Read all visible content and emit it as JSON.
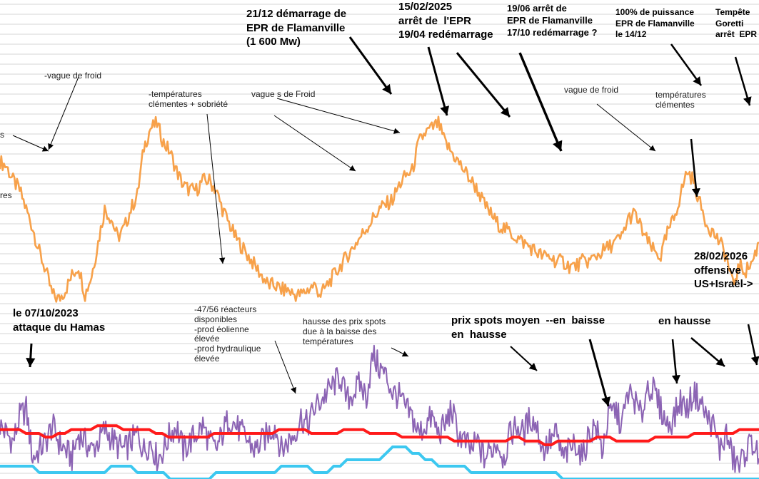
{
  "chart_data": {
    "type": "line",
    "title": "",
    "xlabel": "",
    "ylabel": "",
    "grid": true,
    "legend": "none",
    "colors": {
      "consumption": "#f7a14a",
      "spot": "#8c64b4",
      "red": "#ff1a1a",
      "cyan": "#3cc8f0",
      "arrow": "#000000",
      "grid": "#c8c8c8"
    },
    "series": [
      {
        "key": "consumption",
        "values": [
          72,
          71,
          68,
          66,
          62,
          58,
          53,
          49,
          44,
          43,
          45,
          48,
          50,
          44,
          48,
          55,
          62,
          60,
          56,
          58,
          62,
          65,
          75,
          79,
          80,
          76,
          74,
          70,
          67,
          66,
          66,
          68,
          68,
          66,
          62,
          59,
          56,
          54,
          52,
          50,
          48,
          46,
          46,
          45,
          45,
          44,
          44,
          45,
          46,
          44,
          46,
          48,
          50,
          52,
          54,
          56,
          58,
          60,
          62,
          63,
          64,
          67,
          69,
          70,
          76,
          78,
          79,
          80,
          76,
          74,
          72,
          70,
          68,
          66,
          63,
          61,
          59,
          58,
          57,
          56,
          55,
          54,
          53,
          52,
          52,
          51,
          51,
          50,
          50,
          51,
          51,
          52,
          53,
          54,
          55,
          56,
          60,
          61,
          58,
          55,
          53,
          52,
          57,
          60,
          65,
          70,
          68,
          63,
          59,
          57,
          55,
          52,
          46,
          50,
          49,
          51,
          55
        ]
      },
      {
        "key": "spot",
        "values": [
          28,
          26,
          24,
          30,
          32,
          20,
          22,
          24,
          28,
          24,
          22,
          20,
          26,
          24,
          22,
          24,
          27,
          25,
          23,
          22,
          24,
          26,
          22,
          24,
          20,
          22,
          26,
          28,
          22,
          24,
          26,
          28,
          24,
          22,
          26,
          30,
          28,
          26,
          24,
          22,
          24,
          26,
          28,
          22,
          24,
          26,
          30,
          28,
          32,
          34,
          36,
          38,
          40,
          34,
          36,
          38,
          35,
          45,
          42,
          40,
          36,
          35,
          32,
          30,
          26,
          28,
          30,
          26,
          28,
          32,
          26,
          24,
          22,
          24,
          20,
          22,
          24,
          20,
          26,
          28,
          26,
          30,
          28,
          22,
          24,
          26,
          20,
          22,
          24,
          20,
          26,
          28,
          22,
          30,
          32,
          28,
          36,
          34,
          30,
          38,
          36,
          32,
          28,
          30,
          34,
          32,
          36,
          34,
          30,
          28,
          22,
          26,
          20,
          18,
          22,
          24,
          20
        ]
      },
      {
        "key": "red",
        "values": [
          22,
          22,
          22,
          22,
          21,
          21,
          21,
          20,
          20,
          21,
          21,
          22,
          22,
          22,
          22,
          23,
          23,
          23,
          23,
          22,
          22,
          22,
          22,
          22,
          21,
          21,
          20,
          20,
          20,
          20,
          20,
          20,
          20,
          21,
          21,
          21,
          21,
          21,
          21,
          21,
          21,
          21,
          21,
          22,
          22,
          22,
          22,
          22,
          21,
          21,
          21,
          21,
          21,
          22,
          22,
          22,
          22,
          21,
          21,
          21,
          21,
          21,
          20,
          20,
          20,
          20,
          20,
          20,
          20,
          20,
          19,
          19,
          19,
          19,
          19,
          19,
          19,
          19,
          19,
          20,
          20,
          19,
          19,
          19,
          18,
          18,
          19,
          19,
          19,
          19,
          19,
          19,
          20,
          20,
          20,
          19,
          19,
          19,
          19,
          19,
          19,
          20,
          20,
          20,
          20,
          20,
          20,
          21,
          21,
          21,
          21,
          21,
          21,
          21,
          22,
          22,
          22,
          22
        ]
      },
      {
        "key": "cyan",
        "values": [
          8,
          8,
          8,
          8,
          8,
          8,
          7,
          7,
          7,
          7,
          7,
          7,
          7,
          7,
          7,
          7,
          7,
          8,
          8,
          8,
          8,
          7,
          7,
          7,
          7,
          7,
          6,
          6,
          6,
          6,
          6,
          6,
          6,
          7,
          7,
          7,
          7,
          7,
          7,
          7,
          7,
          7,
          7,
          8,
          8,
          8,
          8,
          8,
          7,
          7,
          7,
          8,
          8,
          9,
          9,
          9,
          9,
          9,
          9,
          10,
          11,
          11,
          11,
          10,
          10,
          9,
          9,
          8,
          8,
          8,
          8,
          8,
          7,
          7,
          7,
          7,
          7,
          7,
          7,
          7,
          7,
          7,
          7,
          7,
          7,
          7,
          6,
          6,
          6,
          6,
          6,
          6,
          6,
          6,
          6,
          6,
          6,
          6,
          6,
          6,
          6,
          6,
          6,
          6,
          6,
          6,
          6,
          6,
          6,
          6,
          6,
          6,
          6,
          6,
          6,
          6,
          6
        ]
      }
    ],
    "annotations": [
      {
        "id": "flamanville-start",
        "style": "big",
        "lines": [
          "21/12 démarrage de",
          "EPR de Flamanville",
          "(1 600 Mw)"
        ]
      },
      {
        "id": "epr-stop-2025",
        "style": "big",
        "lines": [
          "15/02/2025",
          "arrêt de  l'EPR",
          "19/04 redémarrage"
        ]
      },
      {
        "id": "epr-stop-june",
        "style": "big",
        "lines": [
          "19/06 arrêt de",
          "EPR de Flamanville",
          "17/10 redémarrage ?"
        ]
      },
      {
        "id": "epr-full-power",
        "style": "big",
        "lines": [
          "100% de puissance",
          "EPR de Flamanville",
          "le 14/12"
        ]
      },
      {
        "id": "storm-goretti",
        "style": "big",
        "lines": [
          "Tempête",
          "Goretti",
          "arrêt  EPR"
        ]
      },
      {
        "id": "cold-wave-1",
        "style": "small",
        "lines": [
          "-vague de froid"
        ]
      },
      {
        "id": "mild-temp-1",
        "style": "small",
        "lines": [
          "-températures",
          "clémentes + sobriété"
        ]
      },
      {
        "id": "cold-waves-2",
        "style": "small",
        "lines": [
          "vague s de Froid"
        ]
      },
      {
        "id": "cold-wave-3",
        "style": "small",
        "lines": [
          "vague de froid"
        ]
      },
      {
        "id": "mild-temp-2",
        "style": "small",
        "lines": [
          "températures",
          "clémentes"
        ]
      },
      {
        "id": "left-cut-1",
        "style": "small",
        "lines": [
          "s"
        ]
      },
      {
        "id": "left-cut-2",
        "style": "small",
        "lines": [
          "res"
        ]
      },
      {
        "id": "hamas",
        "style": "big",
        "lines": [
          "le 07/10/2023",
          "attaque du Hamas"
        ]
      },
      {
        "id": "reactors",
        "style": "small",
        "lines": [
          "-47/56 réacteurs",
          "disponibles",
          "-prod éolienne",
          "élevée",
          "-prod hydraulique",
          "élevée"
        ]
      },
      {
        "id": "spot-rise",
        "style": "small",
        "lines": [
          "hausse des prix spots",
          "due à la baisse des",
          "températures"
        ]
      },
      {
        "id": "spot-avg",
        "style": "big",
        "lines": [
          "prix spots moyen  --en  baisse",
          "en  hausse"
        ]
      },
      {
        "id": "offensive",
        "style": "big",
        "lines": [
          "28/02/2026",
          "offensive",
          "US+Israël->"
        ]
      },
      {
        "id": "en-hausse",
        "style": "big",
        "lines": [
          "en hausse"
        ]
      }
    ]
  }
}
